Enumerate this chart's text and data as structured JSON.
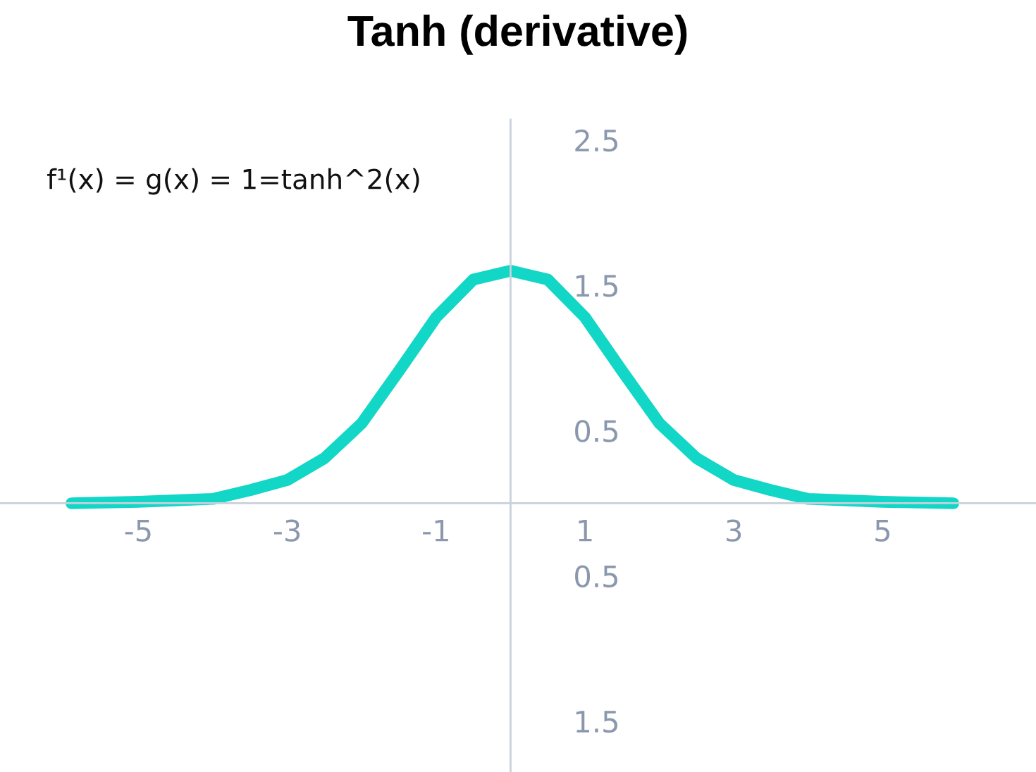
{
  "chart_data": {
    "type": "line",
    "title": "Tanh (derivative)",
    "x": [
      -5.9,
      -5,
      -4,
      -3.5,
      -3,
      -2.5,
      -2,
      -1.5,
      -1,
      -0.5,
      0,
      0.5,
      1,
      1.5,
      2,
      2.5,
      3,
      3.5,
      4,
      5,
      5.95
    ],
    "series": [
      {
        "color": "#12d6c6",
        "values": [
          0,
          0.01,
          0.03,
          0.09,
          0.16,
          0.31,
          0.55,
          0.91,
          1.28,
          1.54,
          1.6,
          1.54,
          1.28,
          0.91,
          0.55,
          0.31,
          0.16,
          0.09,
          0.03,
          0.01,
          0
        ]
      }
    ],
    "xlim": [
      -6.86,
      7.06
    ],
    "ylim": [
      -1.85,
      2.64
    ],
    "xticks": [
      -5,
      -3,
      -1,
      1,
      3,
      5
    ],
    "yticks": [
      2.5,
      1.5,
      0.5,
      {
        "value": -0.5,
        "label": "0.5"
      },
      {
        "value": -1.5,
        "label": "1.5"
      }
    ],
    "annotations": [
      "f¹(x) = g(x) = 1=tanh^2(x)"
    ],
    "grid": false,
    "legend": false,
    "marker": "none",
    "line_style": "solid"
  }
}
